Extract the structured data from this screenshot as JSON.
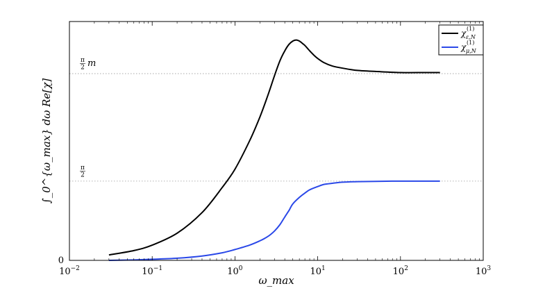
{
  "chart_data": {
    "type": "line",
    "title": "",
    "xlabel": "ω_max",
    "ylabel": "∫_0^{ω_max} dω Re[χ]",
    "x_scale": "log",
    "xlim": [
      0.01,
      1000
    ],
    "ylim": [
      0,
      2.2
    ],
    "x_ticks": [
      {
        "value": 0.01,
        "base": "10",
        "exp": "−2"
      },
      {
        "value": 0.1,
        "base": "10",
        "exp": "−1"
      },
      {
        "value": 1,
        "base": "10",
        "exp": "0"
      },
      {
        "value": 10,
        "base": "10",
        "exp": "1"
      },
      {
        "value": 100,
        "base": "10",
        "exp": "2"
      },
      {
        "value": 1000,
        "base": "10",
        "exp": "3"
      }
    ],
    "y_tick_zero": "0",
    "reference_lines": [
      {
        "label_num": "π",
        "label_den": "2",
        "label_suffix": "m",
        "value": 1.72
      },
      {
        "label_num": "π",
        "label_den": "2",
        "label_suffix": "",
        "value": 0.73
      }
    ],
    "legend": {
      "placement": "top-right",
      "entries": [
        {
          "symbol": "χ",
          "sup": "(1)",
          "sub": "ε,N"
        },
        {
          "symbol": "χ",
          "sup": "(1)",
          "sub": "μ,N"
        }
      ]
    },
    "series": [
      {
        "color": "#000000",
        "x": [
          0.03,
          0.06,
          0.1,
          0.2,
          0.4,
          0.7,
          1.0,
          1.5,
          2.0,
          2.5,
          3.0,
          3.5,
          4.0,
          4.5,
          5.0,
          5.5,
          6.0,
          6.5,
          7.0,
          8.0,
          9.0,
          10,
          12,
          15,
          20,
          30,
          50,
          100,
          200,
          300
        ],
        "y": [
          0.05,
          0.09,
          0.14,
          0.25,
          0.44,
          0.67,
          0.84,
          1.1,
          1.32,
          1.52,
          1.7,
          1.84,
          1.93,
          1.99,
          2.02,
          2.03,
          2.02,
          2.0,
          1.98,
          1.93,
          1.89,
          1.86,
          1.82,
          1.79,
          1.77,
          1.75,
          1.74,
          1.73,
          1.73,
          1.73
        ]
      },
      {
        "color": "#2a48e8",
        "x": [
          0.03,
          0.06,
          0.1,
          0.2,
          0.4,
          0.7,
          1.0,
          1.5,
          2.0,
          2.5,
          3.0,
          3.5,
          4.0,
          4.5,
          5.0,
          6.0,
          7.0,
          8.0,
          10,
          12,
          15,
          20,
          30,
          50,
          100,
          200,
          300
        ],
        "y": [
          0.0,
          0.004,
          0.01,
          0.02,
          0.04,
          0.07,
          0.1,
          0.14,
          0.18,
          0.22,
          0.27,
          0.33,
          0.4,
          0.46,
          0.52,
          0.58,
          0.62,
          0.65,
          0.68,
          0.7,
          0.71,
          0.72,
          0.725,
          0.728,
          0.73,
          0.73,
          0.73
        ]
      }
    ]
  }
}
